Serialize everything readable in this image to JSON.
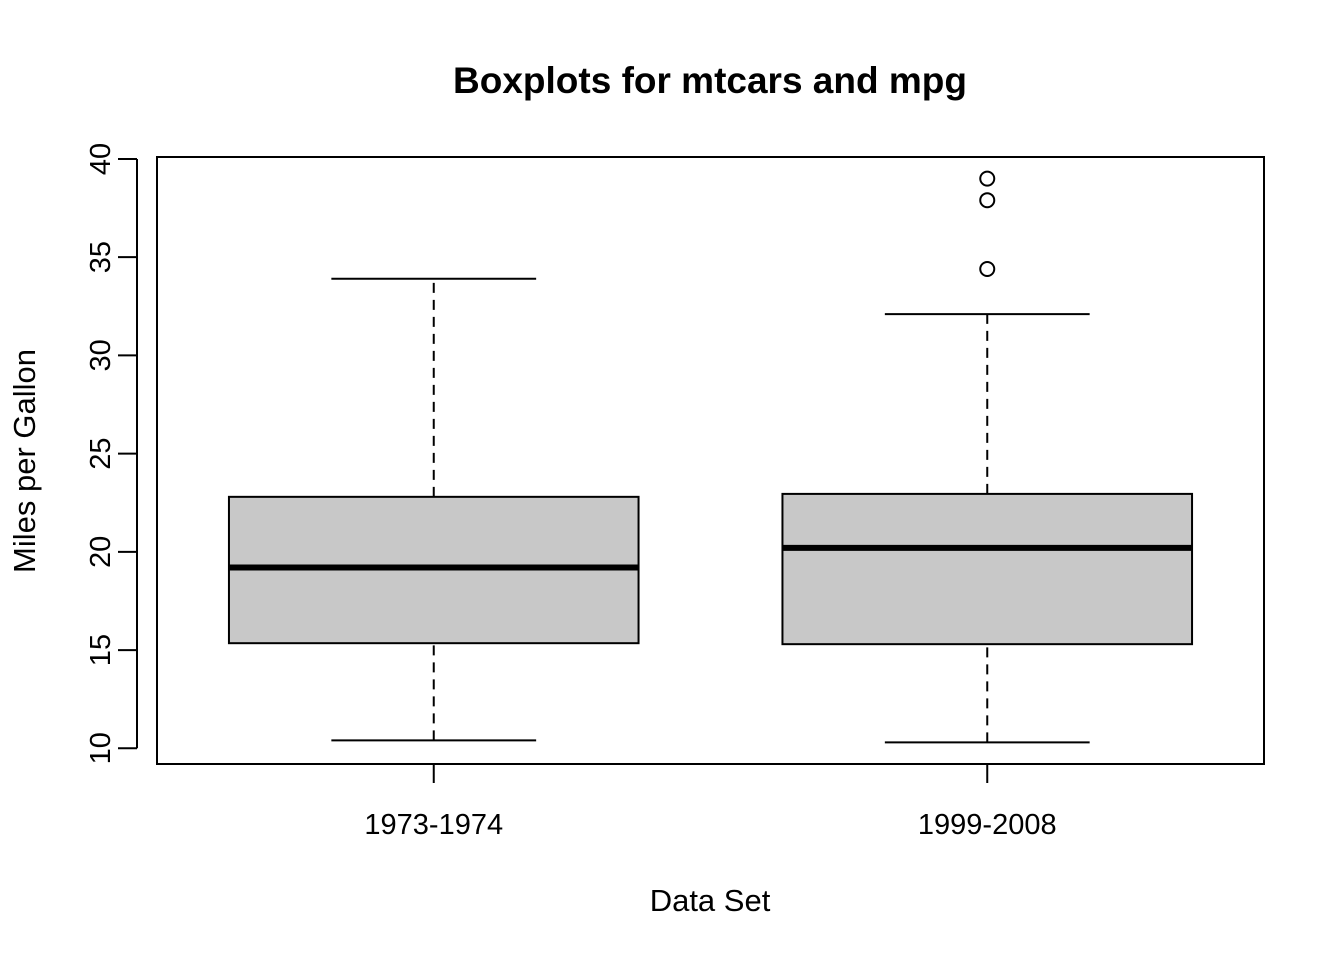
{
  "chart_data": {
    "type": "boxplot",
    "title": "Boxplots for mtcars and mpg",
    "xlabel": "Data Set",
    "ylabel": "Miles per Gallon",
    "ylim": [
      9.2,
      40.1
    ],
    "yticks": [
      10,
      15,
      20,
      25,
      30,
      35,
      40
    ],
    "categories": [
      "1973-1974",
      "1999-2008"
    ],
    "boxes": [
      {
        "category": "1973-1974",
        "whisker_low": 10.4,
        "q1": 15.35,
        "median": 19.2,
        "q3": 22.8,
        "whisker_high": 33.9,
        "outliers": []
      },
      {
        "category": "1999-2008",
        "whisker_low": 10.3,
        "q1": 15.3,
        "median": 20.2,
        "q3": 22.95,
        "whisker_high": 32.1,
        "outliers": [
          34.4,
          37.9,
          39.0
        ]
      }
    ],
    "colors": {
      "box_fill": "#c8c8c8",
      "stroke": "#000000"
    },
    "grid": false,
    "legend": "none"
  }
}
